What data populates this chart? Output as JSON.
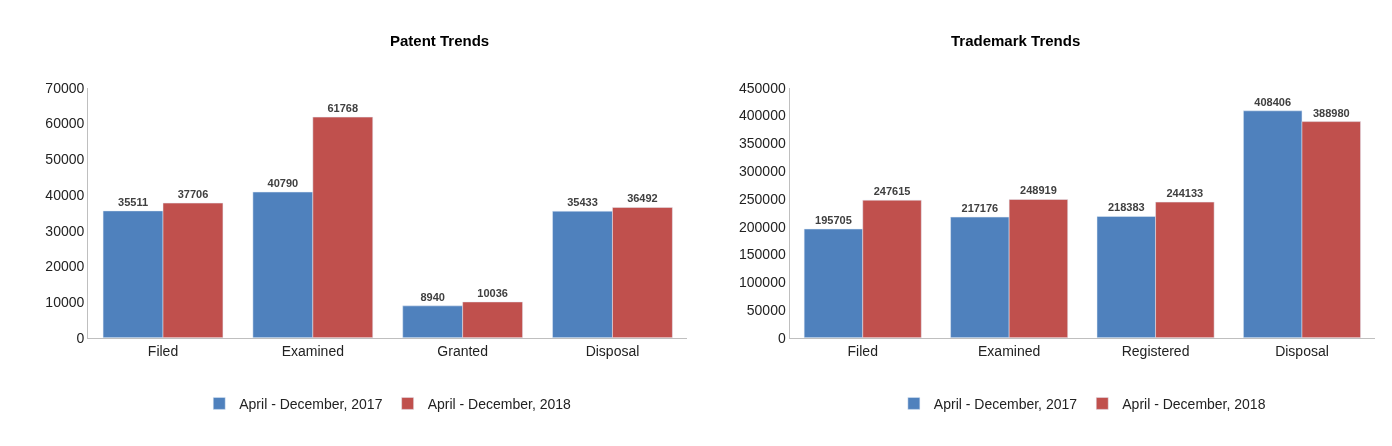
{
  "chart_data": [
    {
      "type": "bar",
      "title": "Patent Trends",
      "categories": [
        "Filed",
        "Examined",
        "Granted",
        "Disposal"
      ],
      "series": [
        {
          "name": "April - December, 2017",
          "color": "#4f81bd",
          "values": [
            35511,
            40790,
            8940,
            35433
          ]
        },
        {
          "name": "April - December, 2018",
          "color": "#c0504d",
          "values": [
            37706,
            61768,
            10036,
            36492
          ]
        }
      ],
      "ylim": [
        0,
        70000
      ],
      "yticks": [
        0,
        10000,
        20000,
        30000,
        40000,
        50000,
        60000,
        70000
      ],
      "legend": "bottom",
      "data_labels": true
    },
    {
      "type": "bar",
      "title": "Trademark Trends",
      "categories": [
        "Filed",
        "Examined",
        "Registered",
        "Disposal"
      ],
      "series": [
        {
          "name": "April - December, 2017",
          "color": "#4f81bd",
          "values": [
            195705,
            217176,
            218383,
            408406
          ]
        },
        {
          "name": "April - December, 2018",
          "color": "#c0504d",
          "values": [
            247615,
            248919,
            244133,
            388980
          ]
        }
      ],
      "ylim": [
        0,
        450000
      ],
      "yticks": [
        0,
        50000,
        100000,
        150000,
        200000,
        250000,
        300000,
        350000,
        400000,
        450000
      ],
      "legend": "bottom",
      "data_labels": true
    }
  ]
}
